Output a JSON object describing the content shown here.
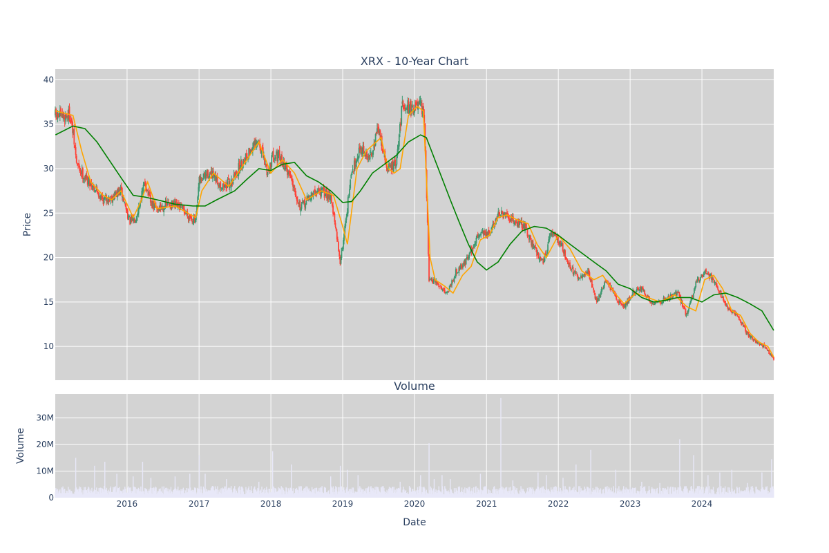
{
  "chart_data": [
    {
      "type": "candlestick",
      "title": "XRX - 10-Year Chart",
      "xlabel": "",
      "ylabel": "Price",
      "ylim": [
        6.2,
        41.2
      ],
      "yticks": [
        10,
        15,
        20,
        25,
        30,
        35,
        40
      ],
      "xlim": [
        "2015-01-01",
        "2024-12-31"
      ],
      "grid": true,
      "background": "#d3d3d3",
      "colors": {
        "up": "#3d9970",
        "down": "#ff4136",
        "ma_fast": "#ffa500",
        "ma_slow": "#008000"
      },
      "close_series": {
        "x": [
          "2015-01-02",
          "2015-02-15",
          "2015-03-15",
          "2015-04-01",
          "2015-04-20",
          "2015-06-01",
          "2015-07-15",
          "2015-09-01",
          "2015-10-15",
          "2015-12-01",
          "2016-01-15",
          "2016-02-15",
          "2016-04-01",
          "2016-05-01",
          "2016-06-01",
          "2016-08-01",
          "2016-10-01",
          "2016-12-15",
          "2017-01-01",
          "2017-02-15",
          "2017-05-01",
          "2017-06-15",
          "2017-08-01",
          "2017-09-15",
          "2017-11-01",
          "2017-12-15",
          "2018-01-15",
          "2018-03-01",
          "2018-04-15",
          "2018-06-01",
          "2018-07-15",
          "2018-09-01",
          "2018-11-01",
          "2018-12-20",
          "2019-01-01",
          "2019-02-15",
          "2019-04-01",
          "2019-05-15",
          "2019-07-01",
          "2019-08-15",
          "2019-10-01",
          "2019-11-01",
          "2019-12-15",
          "2020-02-01",
          "2020-02-20",
          "2020-03-15",
          "2020-05-01",
          "2020-06-15",
          "2020-08-01",
          "2020-09-15",
          "2020-10-20",
          "2020-12-01",
          "2021-01-15",
          "2021-03-01",
          "2021-04-15",
          "2021-06-01",
          "2021-07-15",
          "2021-09-01",
          "2021-10-15",
          "2021-12-01",
          "2022-01-15",
          "2022-03-01",
          "2022-04-15",
          "2022-06-01",
          "2022-07-15",
          "2022-09-01",
          "2022-10-20",
          "2022-12-01",
          "2023-01-15",
          "2023-03-01",
          "2023-04-15",
          "2023-06-01",
          "2023-07-15",
          "2023-09-01",
          "2023-10-15",
          "2023-12-01",
          "2024-01-15",
          "2024-03-01",
          "2024-04-15",
          "2024-05-15",
          "2024-07-01",
          "2024-08-15",
          "2024-10-01",
          "2024-11-15",
          "2024-12-31"
        ],
        "close": [
          36.0,
          35.8,
          36.2,
          34.0,
          30.5,
          29.0,
          28.0,
          26.5,
          26.8,
          27.5,
          24.0,
          24.5,
          28.5,
          26.0,
          25.5,
          26.0,
          25.6,
          24.0,
          28.5,
          29.5,
          28.0,
          28.5,
          30.5,
          32.0,
          33.0,
          29.5,
          31.8,
          30.8,
          29.0,
          25.5,
          26.8,
          27.5,
          27.0,
          19.5,
          21.5,
          29.5,
          32.5,
          31.0,
          34.5,
          30.0,
          30.5,
          37.5,
          36.8,
          37.0,
          35.5,
          17.5,
          17.0,
          16.0,
          18.5,
          19.5,
          21.0,
          23.0,
          22.5,
          25.0,
          24.5,
          24.0,
          23.5,
          21.0,
          19.5,
          23.0,
          21.5,
          19.0,
          17.5,
          18.5,
          15.0,
          17.5,
          15.5,
          14.5,
          16.0,
          16.5,
          15.0,
          15.0,
          15.5,
          16.0,
          13.5,
          17.0,
          18.5,
          17.5,
          15.5,
          14.0,
          13.5,
          11.5,
          10.5,
          10.0,
          8.6
        ]
      },
      "series": [
        {
          "name": "",
          "kind": "ma_fast",
          "x": [
            "2015-01-02",
            "2015-04-01",
            "2015-05-15",
            "2015-07-01",
            "2015-09-01",
            "2015-10-15",
            "2015-12-01",
            "2016-02-01",
            "2016-03-15",
            "2016-04-15",
            "2016-06-01",
            "2016-09-01",
            "2016-12-15",
            "2017-01-15",
            "2017-03-15",
            "2017-06-01",
            "2017-09-01",
            "2017-11-01",
            "2018-01-01",
            "2018-03-01",
            "2018-05-01",
            "2018-07-01",
            "2018-09-15",
            "2018-11-15",
            "2019-01-01",
            "2019-01-25",
            "2019-03-15",
            "2019-05-01",
            "2019-07-15",
            "2019-08-20",
            "2019-09-20",
            "2019-10-20",
            "2019-12-01",
            "2020-01-15",
            "2020-02-15",
            "2020-03-20",
            "2020-04-15",
            "2020-06-01",
            "2020-07-15",
            "2020-09-01",
            "2020-10-15",
            "2020-12-01",
            "2021-01-15",
            "2021-03-01",
            "2021-04-15",
            "2021-06-01",
            "2021-08-01",
            "2021-09-15",
            "2021-11-01",
            "2022-01-01",
            "2022-03-01",
            "2022-05-01",
            "2022-07-01",
            "2022-08-15",
            "2022-10-15",
            "2022-12-01",
            "2023-02-01",
            "2023-04-01",
            "2023-06-01",
            "2023-08-15",
            "2023-10-15",
            "2023-12-01",
            "2024-01-15",
            "2024-03-01",
            "2024-04-15",
            "2024-06-01",
            "2024-07-15",
            "2024-09-01",
            "2024-10-15",
            "2024-12-01",
            "2024-12-31"
          ],
          "values": [
            36.5,
            36.0,
            32.0,
            28.5,
            27.0,
            26.5,
            27.5,
            24.5,
            26.5,
            28.5,
            25.5,
            25.8,
            24.5,
            27.5,
            29.5,
            28.0,
            31.0,
            33.0,
            29.5,
            31.0,
            29.5,
            26.5,
            27.5,
            27.0,
            23.5,
            21.5,
            30.0,
            32.0,
            33.5,
            30.0,
            29.5,
            30.0,
            36.0,
            37.0,
            36.5,
            20.0,
            17.5,
            16.8,
            16.0,
            18.0,
            19.0,
            22.0,
            22.5,
            24.5,
            24.8,
            24.3,
            23.8,
            21.5,
            20.0,
            22.5,
            21.0,
            18.5,
            17.5,
            18.0,
            16.0,
            14.8,
            16.0,
            15.5,
            15.0,
            15.8,
            14.5,
            14.0,
            17.5,
            18.0,
            16.5,
            14.0,
            13.5,
            11.5,
            10.5,
            10.0,
            8.8
          ]
        },
        {
          "name": "",
          "kind": "ma_slow",
          "x": [
            "2015-01-02",
            "2015-04-01",
            "2015-06-01",
            "2015-08-01",
            "2015-10-01",
            "2015-12-01",
            "2016-02-01",
            "2016-04-01",
            "2016-06-01",
            "2016-09-01",
            "2016-12-01",
            "2017-02-01",
            "2017-04-01",
            "2017-07-01",
            "2017-09-01",
            "2017-11-01",
            "2018-01-01",
            "2018-03-01",
            "2018-05-01",
            "2018-07-01",
            "2018-09-01",
            "2018-11-01",
            "2019-01-01",
            "2019-02-15",
            "2019-04-01",
            "2019-06-01",
            "2019-08-01",
            "2019-10-01",
            "2019-12-01",
            "2020-02-01",
            "2020-03-01",
            "2020-05-01",
            "2020-07-01",
            "2020-08-15",
            "2020-10-01",
            "2020-11-15",
            "2021-01-01",
            "2021-03-01",
            "2021-05-01",
            "2021-07-01",
            "2021-09-01",
            "2021-11-01",
            "2022-01-01",
            "2022-03-01",
            "2022-05-01",
            "2022-07-01",
            "2022-09-01",
            "2022-11-01",
            "2023-01-01",
            "2023-03-01",
            "2023-05-01",
            "2023-07-01",
            "2023-09-01",
            "2023-11-01",
            "2024-01-01",
            "2024-03-01",
            "2024-05-01",
            "2024-07-01",
            "2024-09-01",
            "2024-11-01",
            "2024-12-31"
          ],
          "values": [
            33.8,
            34.8,
            34.5,
            33.0,
            31.0,
            29.0,
            27.0,
            26.8,
            26.5,
            26.0,
            25.8,
            25.8,
            26.5,
            27.5,
            28.8,
            30.0,
            29.8,
            30.5,
            30.7,
            29.2,
            28.5,
            27.5,
            26.2,
            26.3,
            27.5,
            29.5,
            30.5,
            31.5,
            33.0,
            33.8,
            33.5,
            30.0,
            26.5,
            24.0,
            21.5,
            19.5,
            18.6,
            19.5,
            21.5,
            23.0,
            23.5,
            23.3,
            22.5,
            21.5,
            20.5,
            19.5,
            18.5,
            17.0,
            16.5,
            15.5,
            15.0,
            15.2,
            15.5,
            15.5,
            15.0,
            15.8,
            16.0,
            15.5,
            14.8,
            14.0,
            11.8
          ]
        }
      ]
    },
    {
      "type": "bar",
      "title": "Volume",
      "xlabel": "Date",
      "ylabel": "Volume",
      "ylim": [
        0,
        39000000
      ],
      "yticks": [
        0,
        10000000,
        20000000,
        30000000
      ],
      "ytick_labels": [
        "0",
        "10M",
        "20M",
        "30M"
      ],
      "xticks": [
        "2016-01-01",
        "2017-01-01",
        "2018-01-01",
        "2019-01-01",
        "2020-01-01",
        "2021-01-01",
        "2022-01-01",
        "2023-01-01",
        "2024-01-01"
      ],
      "xtick_labels": [
        "2016",
        "2017",
        "2018",
        "2019",
        "2020",
        "2021",
        "2022",
        "2023",
        "2024"
      ],
      "grid": true,
      "background": "#d3d3d3",
      "bar_color": "#e8e8f8",
      "spikes": {
        "x": [
          "2015-04-15",
          "2015-07-20",
          "2015-09-10",
          "2015-11-10",
          "2016-02-01",
          "2016-03-20",
          "2016-05-01",
          "2016-09-01",
          "2016-11-15",
          "2017-01-02",
          "2017-02-01",
          "2017-05-20",
          "2017-11-01",
          "2018-01-10",
          "2018-04-15",
          "2018-11-01",
          "2018-12-20",
          "2019-01-25",
          "2019-03-20",
          "2019-10-20",
          "2020-02-01",
          "2020-03-15",
          "2020-04-10",
          "2020-05-20",
          "2020-07-01",
          "2020-12-01",
          "2021-03-15",
          "2021-05-15",
          "2021-09-20",
          "2021-11-01",
          "2022-01-25",
          "2022-04-01",
          "2022-06-15",
          "2022-10-20",
          "2023-03-01",
          "2023-06-01",
          "2023-09-10",
          "2023-11-20",
          "2024-02-01",
          "2024-04-01",
          "2024-06-01",
          "2024-08-20",
          "2024-11-01",
          "2024-12-20"
        ],
        "values": [
          15000000,
          12000000,
          13500000,
          9000000,
          8000000,
          13500000,
          7500000,
          8000000,
          9000000,
          16000000,
          9000000,
          7000000,
          6000000,
          17500000,
          12500000,
          8000000,
          12000000,
          10500000,
          8500000,
          6000000,
          8500000,
          20500000,
          7000000,
          8500000,
          7000000,
          9000000,
          37500000,
          6500000,
          9500000,
          8500000,
          7500000,
          12500000,
          18000000,
          10500000,
          6000000,
          5500000,
          22000000,
          16000000,
          8500000,
          9500000,
          10500000,
          5500000,
          9500000,
          14500000
        ]
      }
    }
  ]
}
